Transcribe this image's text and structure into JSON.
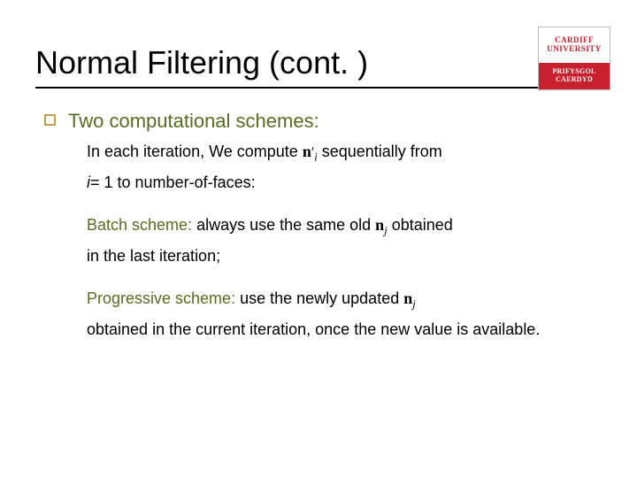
{
  "logo": {
    "top_line1": "CARDIFF",
    "top_line2": "UNIVERSITY",
    "bottom_line1": "PRIFYSGOL",
    "bottom_line2": "CAERDYD",
    "brand_color": "#c8202f"
  },
  "title": "Normal Filtering (cont. )",
  "heading": "Two computational schemes:",
  "intro": {
    "line1_prefix": "In each iteration, We compute ",
    "math_n": "n",
    "math_prime": "′",
    "math_i": "i",
    "line1_suffix": " sequentially from",
    "line2_prefix_i": "i",
    "line2_rest": "= 1 to number-of-faces:"
  },
  "batch": {
    "name": "Batch scheme:",
    "text1": "  always use the same old ",
    "math_n": "n",
    "math_j": "j",
    "text2": "obtained",
    "line2": "in the last iteration;"
  },
  "prog": {
    "name": "Progressive scheme:",
    "text1": " use the newly updated  ",
    "math_n": "n",
    "math_j": "j",
    "line2": "obtained in the current iteration, once the new value is available."
  },
  "colors": {
    "heading_color": "#5a6b23",
    "bullet_border": "#bfa050",
    "text_color": "#000000"
  },
  "typography": {
    "title_fontsize": 36,
    "heading_fontsize": 22,
    "body_fontsize": 18
  }
}
